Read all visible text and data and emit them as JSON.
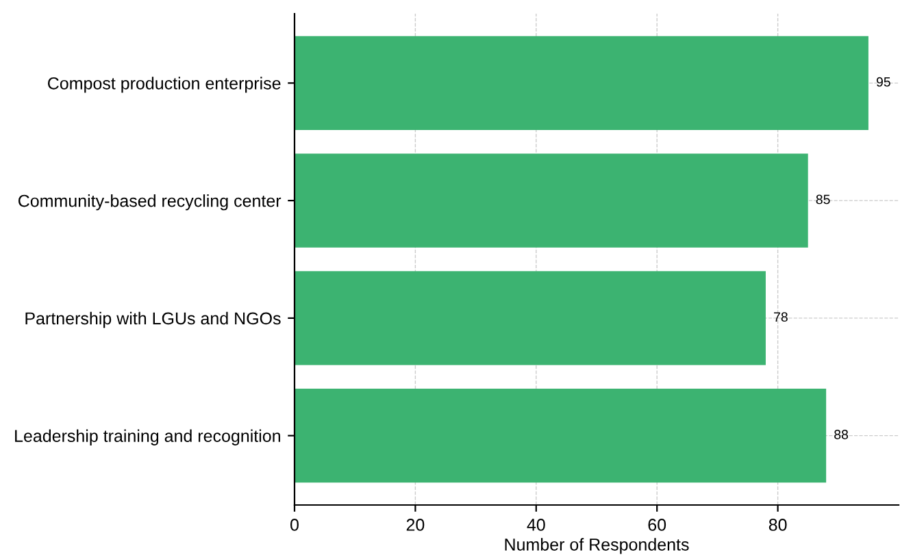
{
  "chart_data": {
    "type": "bar",
    "orientation": "horizontal",
    "xlabel": "Number of Respondents",
    "categories": [
      "Compost production enterprise",
      "Community-based recycling center",
      "Partnership with LGUs and NGOs",
      "Leadership training and recognition"
    ],
    "values": [
      95,
      85,
      78,
      88
    ],
    "color": "#3cb371",
    "data_labels": true,
    "xlim": [
      0,
      100
    ],
    "xticks": [
      0,
      20,
      40,
      60,
      80
    ],
    "grid": true
  }
}
